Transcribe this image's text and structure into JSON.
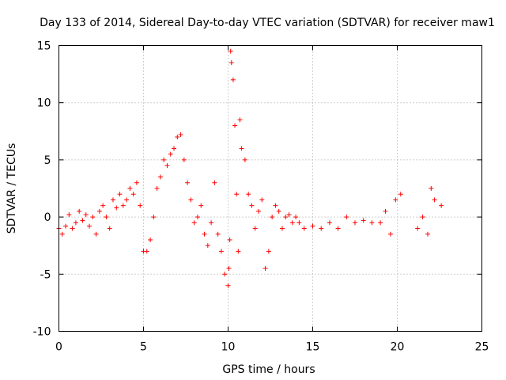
{
  "chart_data": {
    "type": "scatter",
    "title": "Day 133 of 2014, Sidereal Day-to-day VTEC variation (SDTVAR) for receiver maw1",
    "xlabel": "GPS time / hours",
    "ylabel": "SDTVAR / TECUs",
    "xlim": [
      0,
      25
    ],
    "ylim": [
      -10,
      15
    ],
    "xticks": [
      "0",
      "5",
      "10",
      "15",
      "20",
      "25"
    ],
    "yticks": [
      "-10",
      "-5",
      "0",
      "5",
      "10",
      "15"
    ],
    "grid": true,
    "marker": "+",
    "color": "#ff0000",
    "series": [
      {
        "name": "maw1",
        "x": [
          0.0,
          0.2,
          0.4,
          0.6,
          0.8,
          1.0,
          1.2,
          1.4,
          1.6,
          1.8,
          2.0,
          2.2,
          2.4,
          2.6,
          2.8,
          3.0,
          3.2,
          3.4,
          3.6,
          3.8,
          4.0,
          4.2,
          4.4,
          4.6,
          4.8,
          5.0,
          5.2,
          5.4,
          5.6,
          5.8,
          6.0,
          6.2,
          6.4,
          6.6,
          6.8,
          7.0,
          7.2,
          7.4,
          7.6,
          7.8,
          8.0,
          8.2,
          8.4,
          8.6,
          8.8,
          9.0,
          9.2,
          9.4,
          9.6,
          9.8,
          10.0,
          10.05,
          10.1,
          10.15,
          10.2,
          10.3,
          10.4,
          10.5,
          10.6,
          10.7,
          10.8,
          11.0,
          11.2,
          11.4,
          11.6,
          11.8,
          12.0,
          12.2,
          12.4,
          12.6,
          12.8,
          13.0,
          13.2,
          13.4,
          13.6,
          13.8,
          14.0,
          14.2,
          14.5,
          15.0,
          15.5,
          16.0,
          16.5,
          17.0,
          17.5,
          18.0,
          18.5,
          19.0,
          19.3,
          19.6,
          19.9,
          20.2,
          21.2,
          21.5,
          21.8,
          22.0,
          22.2,
          22.6
        ],
        "y": [
          -1.0,
          -1.5,
          -0.8,
          0.2,
          -1.0,
          -0.5,
          0.5,
          -0.3,
          0.2,
          -0.8,
          0.0,
          -1.5,
          0.5,
          1.0,
          0.0,
          -1.0,
          1.5,
          0.8,
          2.0,
          1.0,
          1.5,
          2.5,
          2.0,
          3.0,
          1.0,
          -3.0,
          -3.0,
          -2.0,
          0.0,
          2.5,
          3.5,
          5.0,
          4.5,
          5.5,
          6.0,
          7.0,
          7.2,
          5.0,
          3.0,
          1.5,
          -0.5,
          0.0,
          1.0,
          -1.5,
          -2.5,
          -0.5,
          3.0,
          -1.5,
          -3.0,
          -5.0,
          -6.0,
          -4.5,
          -2.0,
          14.5,
          13.5,
          12.0,
          8.0,
          2.0,
          -3.0,
          8.5,
          6.0,
          5.0,
          2.0,
          1.0,
          -1.0,
          0.5,
          1.5,
          -4.5,
          -3.0,
          0.0,
          1.0,
          0.5,
          -1.0,
          0.0,
          0.2,
          -0.5,
          0.0,
          -0.5,
          -1.0,
          -0.8,
          -1.0,
          -0.5,
          -1.0,
          0.0,
          -0.5,
          -0.3,
          -0.5,
          -0.5,
          0.5,
          -1.5,
          1.5,
          2.0,
          -1.0,
          0.0,
          -1.5,
          2.5,
          1.5,
          1.0
        ]
      }
    ]
  }
}
